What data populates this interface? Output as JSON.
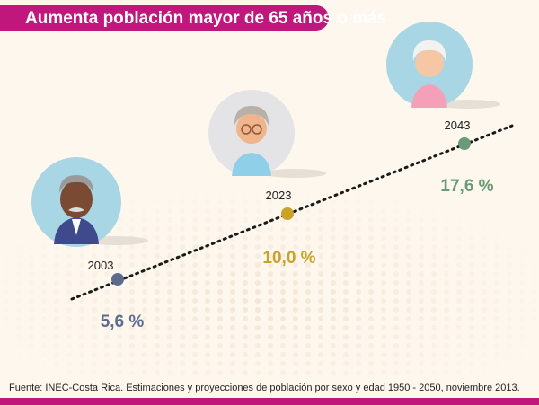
{
  "header": {
    "title": "Aumenta población mayor de 65 años o más"
  },
  "points": [
    {
      "year": "2003",
      "label": "5,6 %"
    },
    {
      "year": "2023",
      "label": "10,0 %"
    },
    {
      "year": "2043",
      "label": "17,6 %"
    }
  ],
  "footer": {
    "source": "Fuente: INEC-Costa Rica. Estimaciones y proyecciones de población por sexo y edad 1950 - 2050, noviembre 2013."
  }
}
